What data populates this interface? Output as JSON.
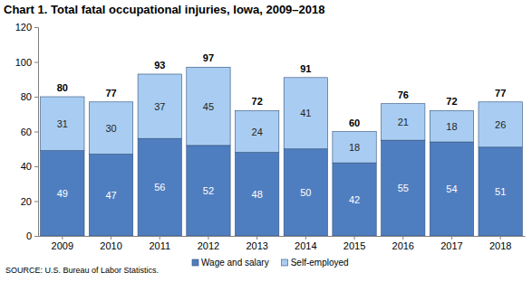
{
  "chart_data": {
    "type": "bar",
    "title": "Chart 1. Total fatal occupational injuries, Iowa, 2009–2018",
    "source": "SOURCE: U.S. Bureau of Labor Statistics.",
    "categories": [
      "2009",
      "2010",
      "2011",
      "2012",
      "2013",
      "2014",
      "2015",
      "2016",
      "2017",
      "2018"
    ],
    "series": [
      {
        "name": "Wage and salary",
        "color": "#4f7ec0",
        "values": [
          49,
          47,
          56,
          52,
          48,
          50,
          42,
          55,
          54,
          51
        ]
      },
      {
        "name": "Self-employed",
        "color": "#a9cdf2",
        "values": [
          31,
          30,
          37,
          45,
          24,
          41,
          18,
          21,
          18,
          26
        ]
      }
    ],
    "totals": [
      80,
      77,
      93,
      97,
      72,
      91,
      60,
      76,
      72,
      77
    ],
    "ylim": [
      0,
      120
    ],
    "yticks": [
      0,
      20,
      40,
      60,
      80,
      100,
      120
    ],
    "stacked": true,
    "data_labels": true,
    "grid": false,
    "legend": "bottom"
  }
}
